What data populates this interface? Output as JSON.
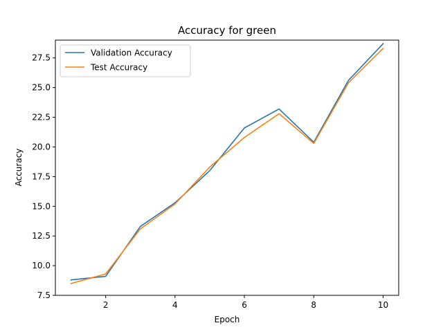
{
  "chart_data": {
    "type": "line",
    "title": "Accuracy for green",
    "xlabel": "Epoch",
    "ylabel": "Accuracy",
    "x": [
      1,
      2,
      3,
      4,
      5,
      6,
      7,
      8,
      9,
      10
    ],
    "series": [
      {
        "name": "Validation Accuracy",
        "color": "#1f77b4",
        "values": [
          8.8,
          9.1,
          13.3,
          15.3,
          18.0,
          21.6,
          23.2,
          20.4,
          25.6,
          28.7
        ]
      },
      {
        "name": "Test Accuracy",
        "color": "#ff7f0e",
        "values": [
          8.5,
          9.3,
          13.1,
          15.2,
          18.3,
          20.8,
          22.8,
          20.3,
          25.4,
          28.3
        ]
      }
    ],
    "xlim": [
      0.55,
      10.45
    ],
    "ylim": [
      7.5,
      29.0
    ],
    "xticks": [
      "2",
      "4",
      "6",
      "8",
      "10"
    ],
    "yticks": [
      "7.5",
      "10.0",
      "12.5",
      "15.0",
      "17.5",
      "20.0",
      "22.5",
      "25.0",
      "27.5"
    ],
    "grid": false,
    "legend_position": "upper-left"
  }
}
